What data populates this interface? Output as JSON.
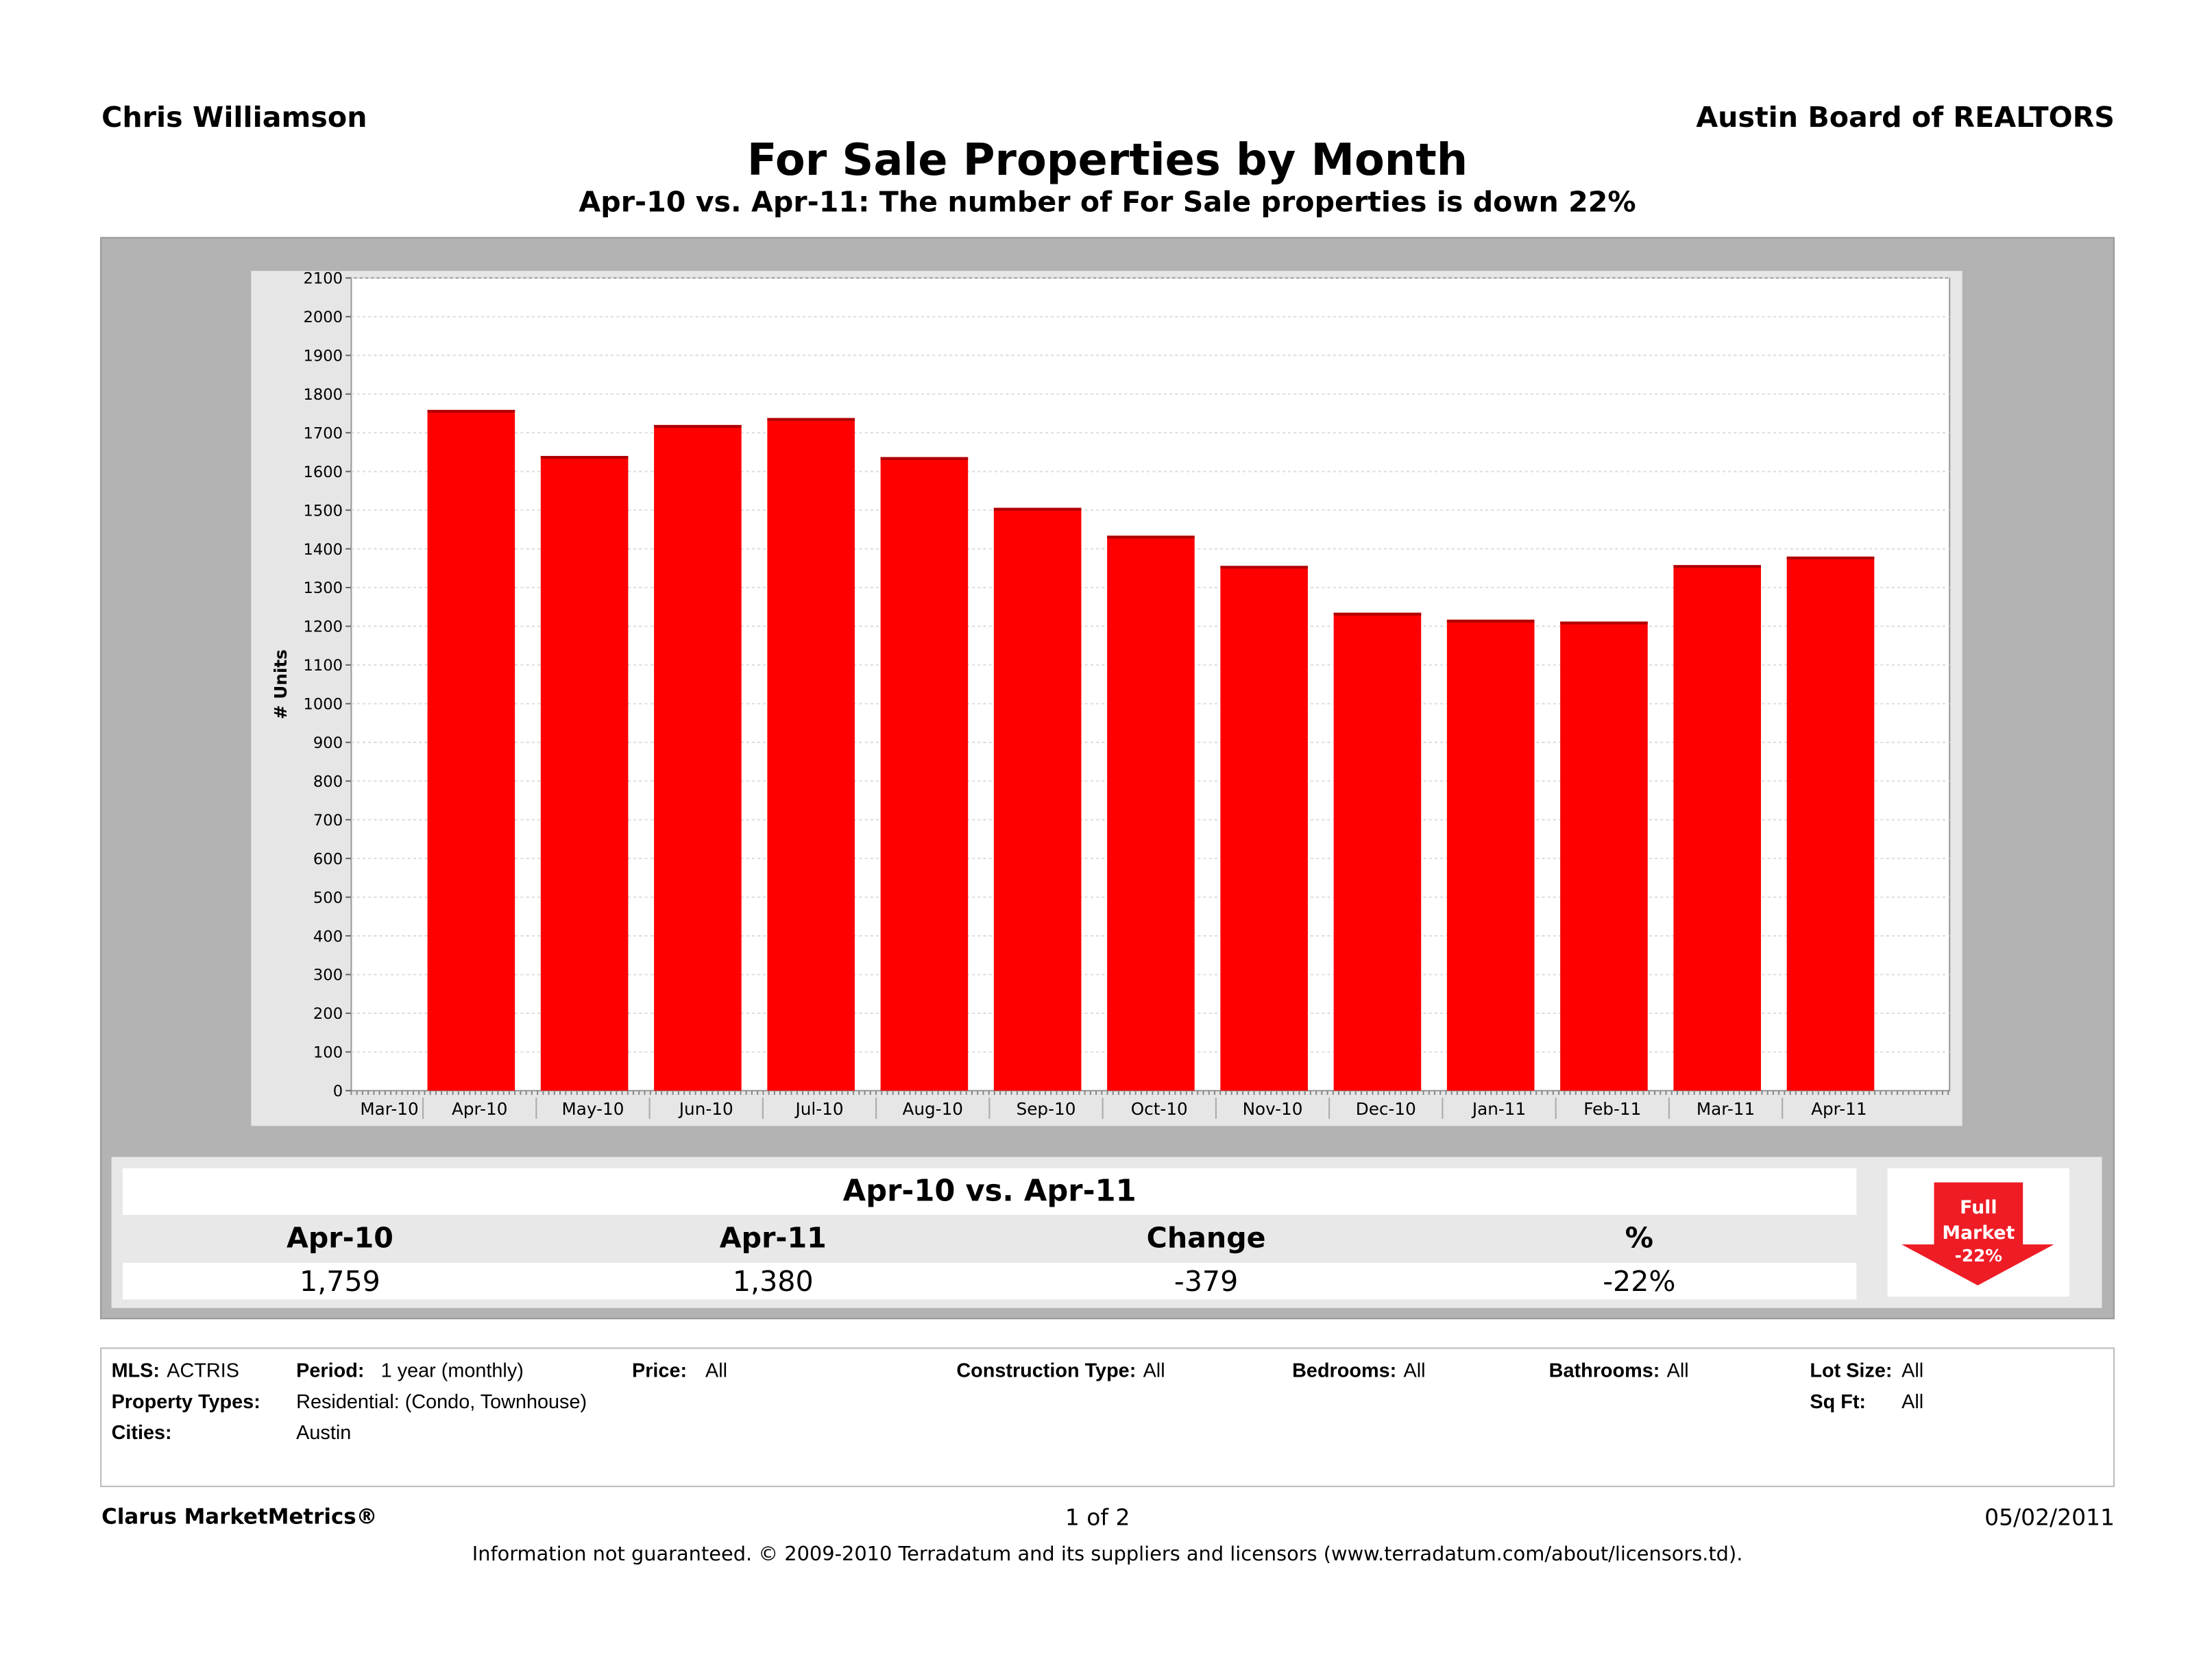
{
  "header": {
    "agent": "Chris Williamson",
    "board": "Austin Board of REALTORS"
  },
  "chart_data": {
    "type": "bar",
    "title": "For Sale Properties by Month",
    "subtitle": "Apr-10 vs. Apr-11: The number of For Sale properties is down 22%",
    "ylabel": "# Units",
    "xlabel": "",
    "ylim": [
      0,
      2100
    ],
    "yticks": [
      "0",
      "100",
      "200",
      "300",
      "400",
      "500",
      "600",
      "700",
      "800",
      "900",
      "1000",
      "1100",
      "1200",
      "1300",
      "1400",
      "1500",
      "1600",
      "1700",
      "1800",
      "1900",
      "2000",
      "2100"
    ],
    "grid": true,
    "bar_color": "#ff0000",
    "categories": [
      "Mar-10",
      "Apr-10",
      "May-10",
      "Jun-10",
      "Jul-10",
      "Aug-10",
      "Sep-10",
      "Oct-10",
      "Nov-10",
      "Dec-10",
      "Jan-11",
      "Feb-11",
      "Mar-11",
      "Apr-11"
    ],
    "values": [
      null,
      1759,
      1640,
      1720,
      1738,
      1637,
      1506,
      1434,
      1356,
      1235,
      1217,
      1212,
      1358,
      1380
    ]
  },
  "summary": {
    "heading": "Apr-10 vs. Apr-11",
    "columns": [
      "Apr-10",
      "Apr-11",
      "Change",
      "%"
    ],
    "values": [
      "1,759",
      "1,380",
      "-379",
      "-22%"
    ],
    "badge": {
      "line1": "Full",
      "line2": "Market",
      "line3": "-22%",
      "icon": "down-arrow-icon",
      "color": "#ee1c25"
    }
  },
  "filters": {
    "mls_label": "MLS:",
    "mls": "ACTRIS",
    "period_label": "Period:",
    "period": "1 year (monthly)",
    "price_label": "Price:",
    "price": "All",
    "construction_label": "Construction Type:",
    "construction": "All",
    "bedrooms_label": "Bedrooms:",
    "bedrooms": "All",
    "bathrooms_label": "Bathrooms:",
    "bathrooms": "All",
    "lot_label": "Lot Size:",
    "lot": "All",
    "ptypes_label": "Property Types:",
    "ptypes": "Residential: (Condo, Townhouse)",
    "sqft_label": "Sq Ft:",
    "sqft": "All",
    "cities_label": "Cities:",
    "cities": "Austin"
  },
  "footer": {
    "brand": "Clarus MarketMetrics®",
    "page": "1 of 2",
    "date": "05/02/2011",
    "disclaimer": "Information not guaranteed.  © 2009-2010 Terradatum and its suppliers and licensors (www.terradatum.com/about/licensors.td)."
  }
}
